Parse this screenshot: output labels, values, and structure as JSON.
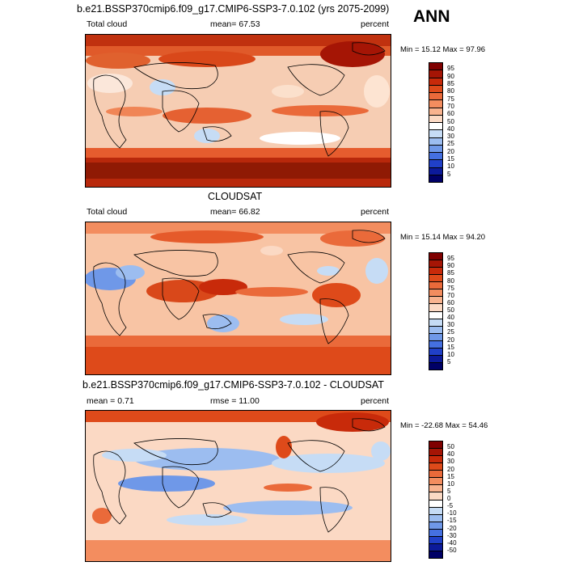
{
  "season": "ANN",
  "panels": [
    {
      "id": "model",
      "heading": "b.e21.BSSP370cmip6.f09_g17.CMIP6-SSP3-7.0.102 (yrs 2075-2099)",
      "left_label": "Total cloud",
      "center_label": "mean=  67.53",
      "right_label": "percent",
      "minmax": "Min =  15.12 Max =  97.96",
      "colorbar_labels": [
        "95",
        "90",
        "85",
        "80",
        "75",
        "70",
        "60",
        "50",
        "40",
        "30",
        "25",
        "20",
        "15",
        "10",
        "5"
      ]
    },
    {
      "id": "obs",
      "heading": "CLOUDSAT",
      "left_label": "Total cloud",
      "center_label": "mean=  66.82",
      "right_label": "percent",
      "minmax": "Min =  15.14 Max =  94.20",
      "colorbar_labels": [
        "95",
        "90",
        "85",
        "80",
        "75",
        "70",
        "60",
        "50",
        "40",
        "30",
        "25",
        "20",
        "15",
        "10",
        "5"
      ]
    },
    {
      "id": "diff",
      "heading": "b.e21.BSSP370cmip6.f09_g17.CMIP6-SSP3-7.0.102 - CLOUDSAT",
      "left_label": "mean =   0.71",
      "center_label": "rmse =  11.00",
      "right_label": "percent",
      "minmax": "Min = -22.68 Max =  54.46",
      "colorbar_labels": [
        "50",
        "40",
        "30",
        "20",
        "15",
        "10",
        "5",
        "0",
        "-5",
        "-10",
        "-15",
        "-20",
        "-30",
        "-40",
        "-50"
      ]
    }
  ],
  "colors": {
    "cloud_scale": [
      "#7f0000",
      "#a51505",
      "#c82a0a",
      "#de4a1a",
      "#ea6a3a",
      "#f38d5f",
      "#f8b38f",
      "#fbd9c4",
      "#ffffff",
      "#c6dcf5",
      "#9cbdf0",
      "#6f98e8",
      "#4570e0",
      "#2040c8",
      "#0c1a9a",
      "#000066"
    ],
    "diff_scale": [
      "#7f0000",
      "#a51505",
      "#c82a0a",
      "#de4a1a",
      "#ea6a3a",
      "#f38d5f",
      "#f8b38f",
      "#fbd9c4",
      "#ffffff",
      "#c6dcf5",
      "#9cbdf0",
      "#6f98e8",
      "#4570e0",
      "#2040c8",
      "#0c1a9a",
      "#000066"
    ]
  }
}
